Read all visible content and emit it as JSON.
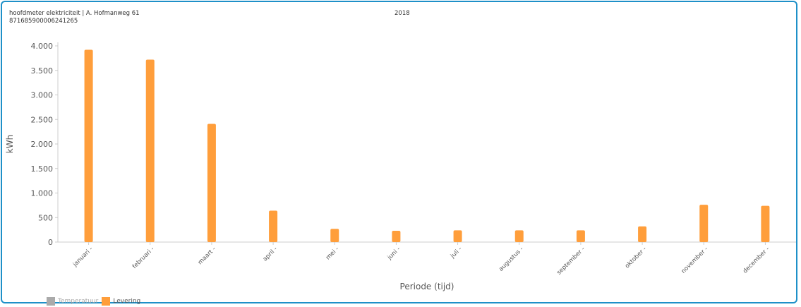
{
  "header": {
    "meter_name": "hoofdmeter elektriciteit | A. Hofmanweg 61",
    "meter_id": "871685900006241265",
    "year": "2018"
  },
  "legend": [
    {
      "label": "Temperatuur",
      "color": "#aaaaaa",
      "active": false
    },
    {
      "label": "Levering",
      "color": "#ff9e3b",
      "active": true
    }
  ],
  "chart_data": {
    "type": "bar",
    "ylabel": "kWh",
    "xlabel": "Periode (tijd)",
    "ylim": [
      0,
      4000
    ],
    "yticks": [
      0,
      500,
      1000,
      1500,
      2000,
      2500,
      3000,
      3500,
      4000
    ],
    "ytick_labels": [
      "0",
      "500",
      "1.000",
      "1.500",
      "2.000",
      "2.500",
      "3.000",
      "3.500",
      "4.000"
    ],
    "categories": [
      "januari",
      "februari",
      "maart",
      "april",
      "mei",
      "juni",
      "juli",
      "augustus",
      "september",
      "oktober",
      "november",
      "december"
    ],
    "series": [
      {
        "name": "Levering",
        "color": "#ff9e3b",
        "values": [
          3920,
          3720,
          2410,
          640,
          270,
          230,
          240,
          240,
          240,
          320,
          760,
          740
        ]
      }
    ],
    "grid": false,
    "legend_position": "bottom-left"
  }
}
